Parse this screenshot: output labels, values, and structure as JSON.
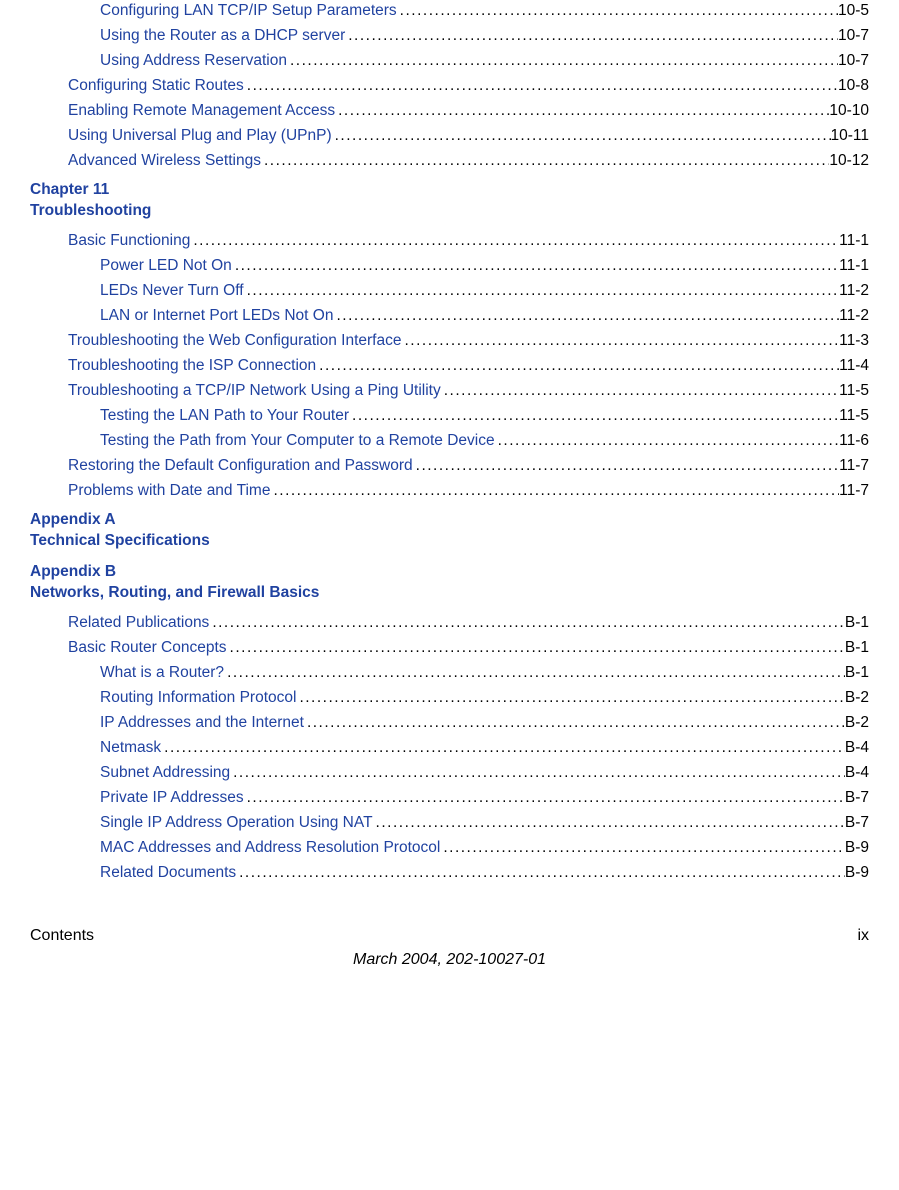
{
  "section0": [
    {
      "indent": 2,
      "text": "Configuring LAN TCP/IP Setup Parameters ",
      "page": "10-5"
    },
    {
      "indent": 2,
      "text": "Using the Router as a DHCP server ",
      "page": "10-7"
    },
    {
      "indent": 2,
      "text": "Using Address Reservation ",
      "page": "10-7"
    },
    {
      "indent": 1,
      "text": "Configuring Static Routes ",
      "page": "10-8"
    },
    {
      "indent": 1,
      "text": "Enabling Remote Management Access ",
      "page": "10-10"
    },
    {
      "indent": 1,
      "text": "Using Universal Plug and Play (UPnP) ",
      "page": " 10-11"
    },
    {
      "indent": 1,
      "text": "Advanced Wireless Settings ",
      "page": "10-12"
    }
  ],
  "chapter11": {
    "line1": "Chapter 11",
    "line2": "Troubleshooting"
  },
  "section1": [
    {
      "indent": 1,
      "text": "Basic Functioning ",
      "page": " 11-1"
    },
    {
      "indent": 2,
      "text": "Power LED Not On ",
      "page": " 11-1"
    },
    {
      "indent": 2,
      "text": "LEDs Never Turn Off ",
      "page": " 11-2"
    },
    {
      "indent": 2,
      "text": "LAN or Internet Port LEDs Not On ",
      "page": " 11-2"
    },
    {
      "indent": 1,
      "text": "Troubleshooting the Web Configuration Interface ",
      "page": " 11-3"
    },
    {
      "indent": 1,
      "text": "Troubleshooting the ISP Connection ",
      "page": " 11-4"
    },
    {
      "indent": 1,
      "text": "Troubleshooting a TCP/IP Network Using a Ping Utility ",
      "page": " 11-5"
    },
    {
      "indent": 2,
      "text": "Testing the LAN Path to Your Router ",
      "page": " 11-5"
    },
    {
      "indent": 2,
      "text": "Testing the Path from Your Computer to a Remote Device ",
      "page": " 11-6"
    },
    {
      "indent": 1,
      "text": "Restoring the Default Configuration and Password ",
      "page": " 11-7"
    },
    {
      "indent": 1,
      "text": "Problems with Date and Time ",
      "page": " 11-7"
    }
  ],
  "appendixA": {
    "line1": "Appendix A",
    "line2": "Technical Specifications"
  },
  "appendixB": {
    "line1": "Appendix B",
    "line2": "Networks, Routing, and Firewall Basics"
  },
  "section2": [
    {
      "indent": 1,
      "text": "Related Publications ",
      "page": " B-1"
    },
    {
      "indent": 1,
      "text": "Basic Router Concepts ",
      "page": " B-1"
    },
    {
      "indent": 2,
      "text": "What is a Router? ",
      "page": " B-1"
    },
    {
      "indent": 2,
      "text": "Routing Information Protocol ",
      "page": " B-2"
    },
    {
      "indent": 2,
      "text": "IP Addresses and the Internet ",
      "page": " B-2"
    },
    {
      "indent": 2,
      "text": "Netmask ",
      "page": " B-4"
    },
    {
      "indent": 2,
      "text": "Subnet Addressing ",
      "page": " B-4"
    },
    {
      "indent": 2,
      "text": "Private IP Addresses ",
      "page": " B-7"
    },
    {
      "indent": 2,
      "text": "Single IP Address Operation Using NAT ",
      "page": " B-7"
    },
    {
      "indent": 2,
      "text": "MAC Addresses and Address Resolution Protocol ",
      "page": " B-9"
    },
    {
      "indent": 2,
      "text": "Related Documents ",
      "page": " B-9"
    }
  ],
  "footer": {
    "left": "Contents",
    "right": "ix",
    "date": "March 2004, 202-10027-01"
  },
  "colors": {
    "link_color": "#2042a0",
    "text_color": "#000000",
    "background": "#ffffff"
  }
}
